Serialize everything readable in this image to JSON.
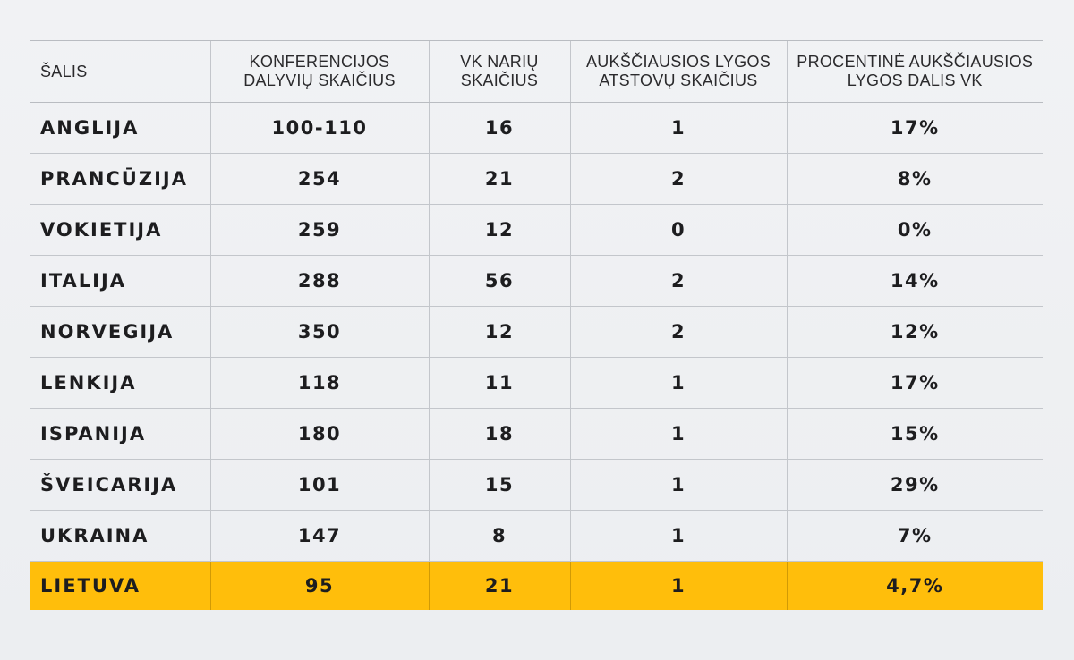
{
  "table": {
    "headers": [
      "ŠALIS",
      "KONFERENCIJOS DALYVIŲ SKAIČIUS",
      "VK NARIŲ SKAIČIUS",
      "AUKŠČIAUSIOS LYGOS ATSTOVŲ SKAIČIUS",
      "PROCENTINĖ AUKŠČIAUSIOS LYGOS DALIS VK"
    ],
    "rows": [
      [
        "ANGLIJA",
        "100-110",
        "16",
        "1",
        "17%"
      ],
      [
        "PRANCŪZIJA",
        "254",
        "21",
        "2",
        "8%"
      ],
      [
        "VOKIETIJA",
        "259",
        "12",
        "0",
        "0%"
      ],
      [
        "ITALIJA",
        "288",
        "56",
        "2",
        "14%"
      ],
      [
        "NORVEGIJA",
        "350",
        "12",
        "2",
        "12%"
      ],
      [
        "LENKIJA",
        "118",
        "11",
        "1",
        "17%"
      ],
      [
        "ISPANIJA",
        "180",
        "18",
        "1",
        "15%"
      ],
      [
        "ŠVEICARIJA",
        "101",
        "15",
        "1",
        "29%"
      ],
      [
        "UKRAINA",
        "147",
        "8",
        "1",
        "7%"
      ],
      [
        "LIETUVA",
        "95",
        "21",
        "1",
        "4,7%"
      ]
    ],
    "highlight_row": 9,
    "highlight_color": "#ffbe0b"
  }
}
